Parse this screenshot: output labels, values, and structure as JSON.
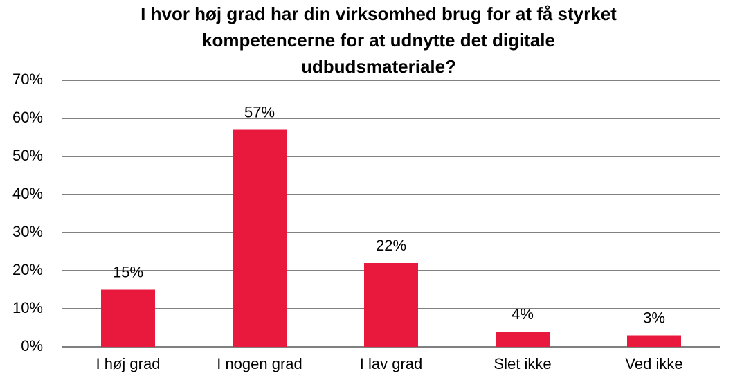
{
  "chart_data": {
    "type": "bar",
    "title": [
      "I hvor høj grad har din virksomhed brug for at få styrket",
      "kompetencerne for at udnytte det digitale",
      "udbudsmateriale?"
    ],
    "categories": [
      "I høj grad",
      "I nogen grad",
      "I lav grad",
      "Slet ikke",
      "Ved ikke"
    ],
    "values": [
      15,
      57,
      22,
      4,
      3
    ],
    "value_labels": [
      "15%",
      "57%",
      "22%",
      "4%",
      "3%"
    ],
    "color": "#e8193c",
    "ylim": [
      0,
      70
    ],
    "yticks": [
      {
        "value": 0,
        "label": "0%"
      },
      {
        "value": 10,
        "label": "10%"
      },
      {
        "value": 20,
        "label": "20%"
      },
      {
        "value": 30,
        "label": "30%"
      },
      {
        "value": 40,
        "label": "40%"
      },
      {
        "value": 50,
        "label": "50%"
      },
      {
        "value": 60,
        "label": "60%"
      },
      {
        "value": 70,
        "label": "70%"
      }
    ],
    "grid": true
  }
}
